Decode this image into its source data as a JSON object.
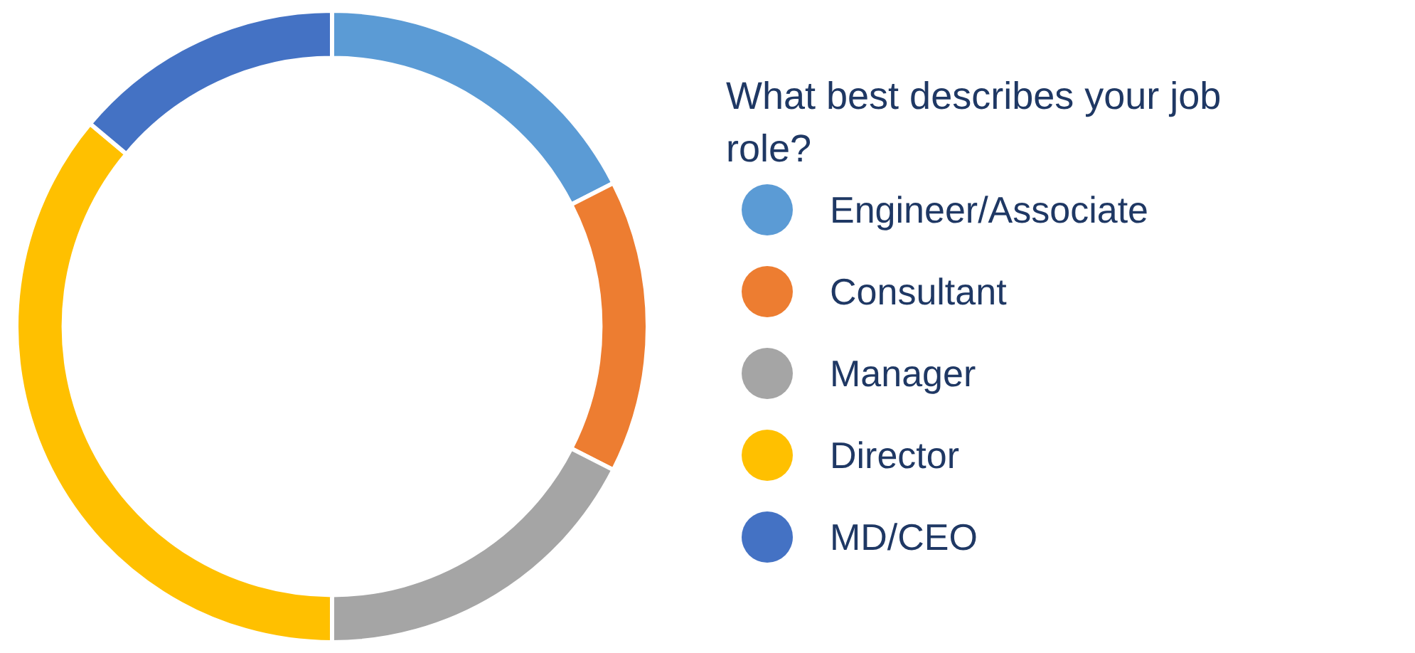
{
  "chart_data": {
    "type": "donut",
    "title": "What best describes your job role?",
    "categories": [
      "Engineer/Associate",
      "Consultant",
      "Manager",
      "Director",
      "MD/CEO"
    ],
    "values": [
      17.5,
      15,
      17.5,
      36.1,
      13.9
    ],
    "colors": [
      "#5b9bd5",
      "#ed7d31",
      "#a5a5a5",
      "#ffc000",
      "#4472c4"
    ],
    "legend": "right"
  }
}
